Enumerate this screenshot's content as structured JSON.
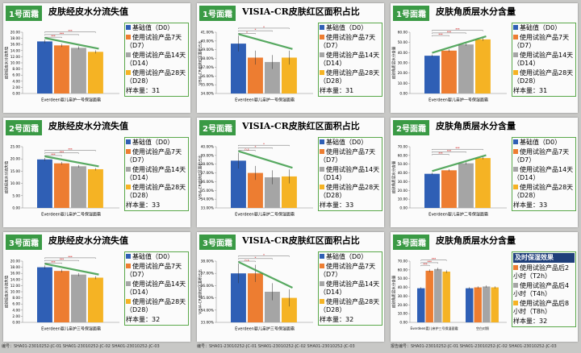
{
  "chart_data": [
    {
      "type": "bar",
      "tag": "1号面霜",
      "title": "皮肤经皮水分流失值",
      "ylabel": "皮肤经皮水分流失值",
      "categories": [
        "Everdeen婴儿亲护一号保湿面霜"
      ],
      "series": [
        {
          "name": "基础值（D0）",
          "color": "#2f5fb5",
          "values": [
            17.0
          ],
          "errors": [
            0.6
          ]
        },
        {
          "name": "使用试验产品7天（D7）",
          "color": "#ed7d31",
          "values": [
            15.7
          ],
          "errors": [
            0.5
          ]
        },
        {
          "name": "使用试验产品14天（D14）",
          "color": "#a5a5a5",
          "values": [
            14.9
          ],
          "errors": [
            0.5
          ]
        },
        {
          "name": "使用试验产品28天（D28）",
          "color": "#f5b324",
          "values": [
            13.6
          ],
          "errors": [
            0.5
          ]
        }
      ],
      "ylim": [
        0,
        20
      ],
      "yticks": [
        {
          "value": 0,
          "label": "0.00"
        },
        {
          "value": 2,
          "label": "2.00"
        },
        {
          "value": 4,
          "label": "4.00"
        },
        {
          "value": 6,
          "label": "6.00"
        },
        {
          "value": 8,
          "label": "8.00"
        },
        {
          "value": 10,
          "label": "10.00"
        },
        {
          "value": 12,
          "label": "12.00"
        },
        {
          "value": 14,
          "label": "14.00"
        },
        {
          "value": 16,
          "label": "16.00"
        },
        {
          "value": 18,
          "label": "18.00"
        },
        {
          "value": 20,
          "label": "20.00"
        }
      ],
      "sig": [
        "***",
        "***",
        "***"
      ],
      "sample": "样本量：31"
    },
    {
      "type": "bar",
      "tag": "1号面霜",
      "title": "VISIA-CR皮肤红区面积占比",
      "ylabel": "VISIA-CR皮肤红区面积占比",
      "categories": [
        "Everdeen婴儿亲护一号保湿面霜"
      ],
      "series": [
        {
          "name": "基础值（D0）",
          "color": "#2f5fb5",
          "values": [
            39.7
          ],
          "errors": [
            0.9
          ]
        },
        {
          "name": "使用试验产品7天（D7）",
          "color": "#ed7d31",
          "values": [
            38.1
          ],
          "errors": [
            0.8
          ]
        },
        {
          "name": "使用试验产品14天（D14）",
          "color": "#a5a5a5",
          "values": [
            37.6
          ],
          "errors": [
            0.8
          ]
        },
        {
          "name": "使用试验产品28天（D28）",
          "color": "#f5b324",
          "values": [
            38.1
          ],
          "errors": [
            0.8
          ]
        }
      ],
      "ylim": [
        34,
        41
      ],
      "yticks": [
        {
          "value": 34,
          "label": "34.00%"
        },
        {
          "value": 35,
          "label": "35.00%"
        },
        {
          "value": 36,
          "label": "36.00%"
        },
        {
          "value": 37,
          "label": "37.00%"
        },
        {
          "value": 38,
          "label": "38.00%"
        },
        {
          "value": 39,
          "label": "39.00%"
        },
        {
          "value": 40,
          "label": "40.00%"
        },
        {
          "value": 41,
          "label": "41.00%"
        }
      ],
      "sig": [
        "*",
        "*",
        "*"
      ],
      "sample": "样本量：31"
    },
    {
      "type": "bar",
      "tag": "1号面霜",
      "title": "皮肤角质层水分含量",
      "ylabel": "皮肤角质层水分含量",
      "categories": [
        "Everdeen婴儿亲护一号保湿面霜"
      ],
      "series": [
        {
          "name": "基础值（D0）",
          "color": "#2f5fb5",
          "values": [
            37
          ],
          "errors": [
            1.2
          ]
        },
        {
          "name": "使用试验产品7天（D7）",
          "color": "#ed7d31",
          "values": [
            42
          ],
          "errors": [
            1.3
          ]
        },
        {
          "name": "使用试验产品14天（D14）",
          "color": "#a5a5a5",
          "values": [
            48
          ],
          "errors": [
            1.3
          ]
        },
        {
          "name": "使用试验产品28天（D28）",
          "color": "#f5b324",
          "values": [
            53
          ],
          "errors": [
            1.4
          ]
        }
      ],
      "ylim": [
        0,
        60
      ],
      "yticks": [
        {
          "value": 0,
          "label": "0.00"
        },
        {
          "value": 10,
          "label": "10.00"
        },
        {
          "value": 20,
          "label": "20.00"
        },
        {
          "value": 30,
          "label": "30.00"
        },
        {
          "value": 40,
          "label": "40.00"
        },
        {
          "value": 50,
          "label": "50.00"
        },
        {
          "value": 60,
          "label": "60.00"
        }
      ],
      "sig": [
        "***",
        "***",
        "***"
      ],
      "sample": "样本量：31"
    },
    {
      "type": "bar",
      "tag": "2号面霜",
      "title": "皮肤经皮水分流失值",
      "ylabel": "皮肤经皮水分流失值",
      "categories": [
        "Everdeen婴儿亲护二号保湿面霜"
      ],
      "series": [
        {
          "name": "基础值（D0）",
          "color": "#2f5fb5",
          "values": [
            19.8
          ],
          "errors": [
            0.6
          ]
        },
        {
          "name": "使用试验产品7天（D7）",
          "color": "#ed7d31",
          "values": [
            18.2
          ],
          "errors": [
            0.6
          ]
        },
        {
          "name": "使用试验产品14天（D14）",
          "color": "#a5a5a5",
          "values": [
            17.0
          ],
          "errors": [
            0.5
          ]
        },
        {
          "name": "使用试验产品28天（D28）",
          "color": "#f5b324",
          "values": [
            15.8
          ],
          "errors": [
            0.5
          ]
        }
      ],
      "ylim": [
        0,
        25
      ],
      "yticks": [
        {
          "value": 0,
          "label": "0.00"
        },
        {
          "value": 5,
          "label": "5.00"
        },
        {
          "value": 10,
          "label": "10.00"
        },
        {
          "value": 15,
          "label": "15.00"
        },
        {
          "value": 20,
          "label": "20.00"
        },
        {
          "value": 25,
          "label": "25.00"
        }
      ],
      "sig": [
        "***",
        "***",
        "***"
      ],
      "sample": "样本量：33"
    },
    {
      "type": "bar",
      "tag": "2号面霜",
      "title": "VISIA-CR皮肤红区面积占比",
      "ylabel": "VISIA-CR皮肤红区面积占比",
      "categories": [
        "Everdeen婴儿亲护二号保湿面霜"
      ],
      "series": [
        {
          "name": "基础值（D0）",
          "color": "#2f5fb5",
          "values": [
            38.4
          ],
          "errors": [
            0.9
          ]
        },
        {
          "name": "使用试验产品7天（D7）",
          "color": "#ed7d31",
          "values": [
            37.0
          ],
          "errors": [
            0.8
          ]
        },
        {
          "name": "使用试验产品14天（D14）",
          "color": "#a5a5a5",
          "values": [
            36.5
          ],
          "errors": [
            0.8
          ]
        },
        {
          "name": "使用试验产品28天（D28）",
          "color": "#f5b324",
          "values": [
            36.6
          ],
          "errors": [
            0.8
          ]
        }
      ],
      "ylim": [
        33,
        40
      ],
      "yticks": [
        {
          "value": 33,
          "label": "33.00%"
        },
        {
          "value": 34,
          "label": "34.00%"
        },
        {
          "value": 35,
          "label": "35.00%"
        },
        {
          "value": 36,
          "label": "36.00%"
        },
        {
          "value": 37,
          "label": "37.00%"
        },
        {
          "value": 38,
          "label": "38.00%"
        },
        {
          "value": 39,
          "label": "39.00%"
        },
        {
          "value": 40,
          "label": "40.00%"
        }
      ],
      "sig": [
        "n.s",
        "*",
        "*"
      ],
      "sample": "样本量：33"
    },
    {
      "type": "bar",
      "tag": "2号面霜",
      "title": "皮肤角质层水分含量",
      "ylabel": "皮肤角质层水分含量",
      "categories": [
        "Everdeen婴儿亲护二号保湿面霜"
      ],
      "series": [
        {
          "name": "基础值（D0）",
          "color": "#2f5fb5",
          "values": [
            39
          ],
          "errors": [
            1.2
          ]
        },
        {
          "name": "使用试验产品7天（D7）",
          "color": "#ed7d31",
          "values": [
            43
          ],
          "errors": [
            1.3
          ]
        },
        {
          "name": "使用试验产品14天（D14）",
          "color": "#a5a5a5",
          "values": [
            51
          ],
          "errors": [
            1.4
          ]
        },
        {
          "name": "使用试验产品28天（D28）",
          "color": "#f5b324",
          "values": [
            57
          ],
          "errors": [
            1.4
          ]
        }
      ],
      "ylim": [
        0,
        70
      ],
      "yticks": [
        {
          "value": 0,
          "label": "0.00"
        },
        {
          "value": 10,
          "label": "10.00"
        },
        {
          "value": 20,
          "label": "20.00"
        },
        {
          "value": 30,
          "label": "30.00"
        },
        {
          "value": 40,
          "label": "40.00"
        },
        {
          "value": 50,
          "label": "50.00"
        },
        {
          "value": 60,
          "label": "60.00"
        },
        {
          "value": 70,
          "label": "70.00"
        }
      ],
      "sig": [
        "***",
        "***",
        "***"
      ],
      "sample": "样本量：33"
    },
    {
      "type": "bar",
      "tag": "3号面霜",
      "title": "皮肤经皮水分流失值",
      "ylabel": "皮肤经皮水分流失值",
      "categories": [
        "Everdeen婴儿亲护三号保湿面霜"
      ],
      "series": [
        {
          "name": "基础值（D0）",
          "color": "#2f5fb5",
          "values": [
            18.0
          ],
          "errors": [
            0.6
          ]
        },
        {
          "name": "使用试验产品7天（D7）",
          "color": "#ed7d31",
          "values": [
            16.8
          ],
          "errors": [
            0.5
          ]
        },
        {
          "name": "使用试验产品14天（D14）",
          "color": "#a5a5a5",
          "values": [
            15.6
          ],
          "errors": [
            0.5
          ]
        },
        {
          "name": "使用试验产品28天（D28）",
          "color": "#f5b324",
          "values": [
            14.6
          ],
          "errors": [
            0.5
          ]
        }
      ],
      "ylim": [
        0,
        20
      ],
      "yticks": [
        {
          "value": 0,
          "label": "0.00"
        },
        {
          "value": 2,
          "label": "2.00"
        },
        {
          "value": 4,
          "label": "4.00"
        },
        {
          "value": 6,
          "label": "6.00"
        },
        {
          "value": 8,
          "label": "8.00"
        },
        {
          "value": 10,
          "label": "10.00"
        },
        {
          "value": 12,
          "label": "12.00"
        },
        {
          "value": 14,
          "label": "14.00"
        },
        {
          "value": 16,
          "label": "16.00"
        },
        {
          "value": 18,
          "label": "18.00"
        },
        {
          "value": 20,
          "label": "20.00"
        }
      ],
      "sig": [
        "***",
        "***",
        "***"
      ],
      "sample": "样本量：32"
    },
    {
      "type": "bar",
      "tag": "3号面霜",
      "title": "VISIA-CR皮肤红区面积占比",
      "ylabel": "VISIA-CR皮肤红区面积占比",
      "categories": [
        "Everdeen婴儿亲护三号保湿面霜"
      ],
      "series": [
        {
          "name": "基础值（D0）",
          "color": "#2f5fb5",
          "values": [
            37.0
          ],
          "errors": [
            0.8
          ]
        },
        {
          "name": "使用试验产品7天（D7）",
          "color": "#ed7d31",
          "values": [
            37.0
          ],
          "errors": [
            0.7
          ]
        },
        {
          "name": "使用试验产品14天（D14）",
          "color": "#a5a5a5",
          "values": [
            35.5
          ],
          "errors": [
            0.7
          ]
        },
        {
          "name": "使用试验产品28天（D28）",
          "color": "#f5b324",
          "values": [
            35.0
          ],
          "errors": [
            0.7
          ]
        }
      ],
      "ylim": [
        33,
        38
      ],
      "yticks": [
        {
          "value": 33,
          "label": "33.00%"
        },
        {
          "value": 34,
          "label": "34.00%"
        },
        {
          "value": 35,
          "label": "35.00%"
        },
        {
          "value": 36,
          "label": "36.00%"
        },
        {
          "value": 37,
          "label": "37.00%"
        },
        {
          "value": 38,
          "label": "38.00%"
        }
      ],
      "sig": [
        "n.s",
        "*",
        "*"
      ],
      "sample": "样本量：32"
    },
    {
      "type": "bar",
      "tag": "3号面霜",
      "title": "皮肤角质层水分含量",
      "badge": "及时保湿效果",
      "ylabel": "皮肤角质层水分含量",
      "categories": [
        "Everdeen婴儿亲护三号保湿面霜",
        "空白对照"
      ],
      "series": [
        {
          "color": "#2f5fb5",
          "values": [
            39,
            39
          ],
          "errors": [
            1.2,
            1.2
          ]
        },
        {
          "name": "使用试验产品后2小时（T2h）",
          "color": "#ed7d31",
          "values": [
            59,
            40
          ],
          "errors": [
            1.5,
            1.2
          ]
        },
        {
          "name": "使用试验产品后4小时（T4h）",
          "color": "#a5a5a5",
          "values": [
            61,
            41
          ],
          "errors": [
            1.5,
            1.2
          ]
        },
        {
          "name": "使用试验产品后8小时（T8h）",
          "color": "#f5b324",
          "values": [
            58,
            40
          ],
          "errors": [
            1.5,
            1.2
          ]
        }
      ],
      "ylim": [
        0,
        70
      ],
      "yticks": [
        {
          "value": 0,
          "label": "0.00"
        },
        {
          "value": 10,
          "label": "10.00"
        },
        {
          "value": 20,
          "label": "20.00"
        },
        {
          "value": 30,
          "label": "30.00"
        },
        {
          "value": 40,
          "label": "40.00"
        },
        {
          "value": 50,
          "label": "50.00"
        },
        {
          "value": 60,
          "label": "60.00"
        },
        {
          "value": 70,
          "label": "70.00"
        }
      ],
      "sig": [
        "***",
        "***",
        "***"
      ],
      "sample": "样本量：32"
    }
  ],
  "footer": [
    "编号：SHA01-23010252-JC-01 SHA01-23010252-JC-02 SHA01-23010252-JC-03",
    "编号：SHA01-23010252-JC-01 SHA01-23010252-JC-02 SHA01-23010252-JC-03",
    "报告编号：SHA01-23010252-JC-01 SHA01-23010252-JC-02 SHA01-23010252-JC-03"
  ]
}
